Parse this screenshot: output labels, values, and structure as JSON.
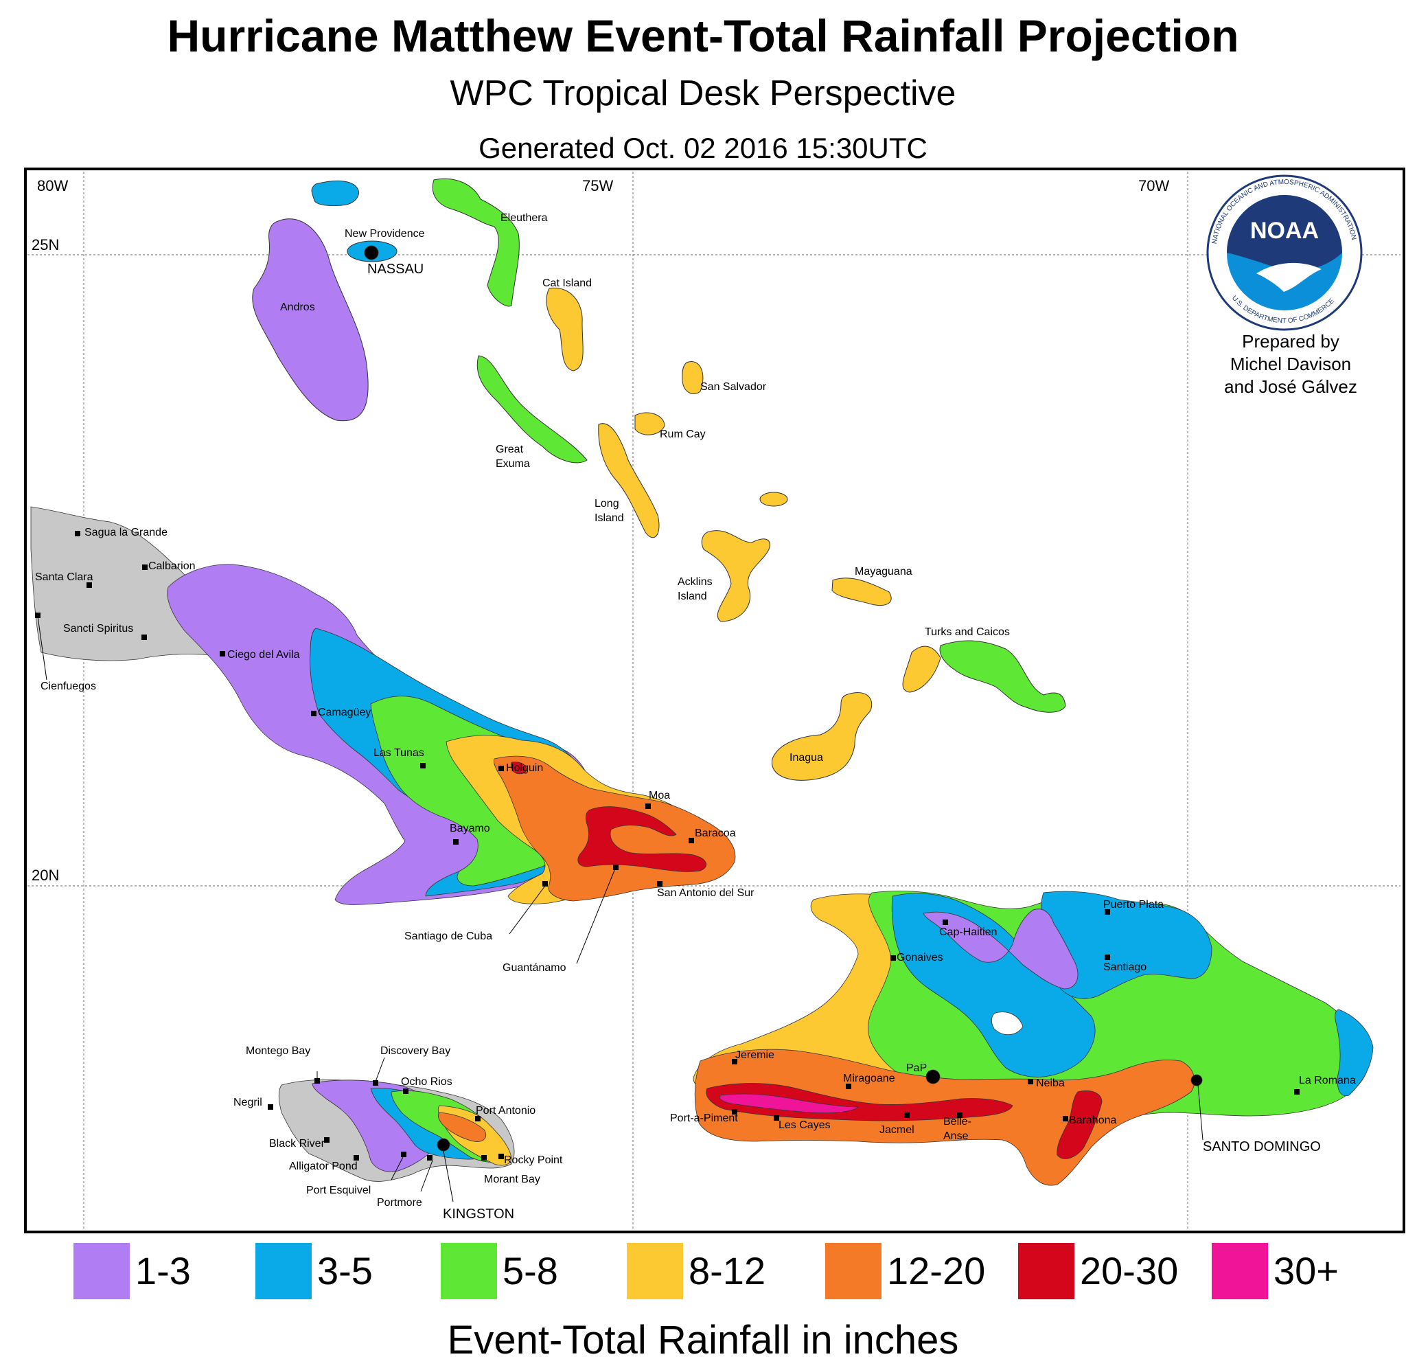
{
  "header": {
    "title": "Hurricane Matthew Event-Total Rainfall Projection",
    "subtitle": "WPC Tropical Desk Perspective",
    "generated": "Generated Oct. 02 2016 15:30UTC"
  },
  "axes": {
    "lon_labels": [
      "80W",
      "75W",
      "70W"
    ],
    "lat_labels": [
      "25N",
      "20N"
    ]
  },
  "logo": {
    "text": "NOAA",
    "ring_text_top": "NATIONAL OCEANIC AND ATMOSPHERIC ADMINISTRATION",
    "ring_text_bottom": "U.S. DEPARTMENT OF COMMERCE"
  },
  "credit": {
    "line1": "Prepared by",
    "line2": "Michel Davison",
    "line3": "and José Gálvez"
  },
  "colors": {
    "c1_3": "#b07ef2",
    "c3_5": "#0aaae8",
    "c5_8": "#5ee835",
    "c8_12": "#fcc933",
    "c12_20": "#f57a28",
    "c20_30": "#d4061c",
    "c30_plus": "#f01598",
    "land_gray": "#c8c8c8"
  },
  "places": {
    "bahamas": {
      "new_providence": "New Providence",
      "nassau": "NASSAU",
      "andros": "Andros",
      "eleuthera": "Eleuthera",
      "cat_island": "Cat Island",
      "san_salvador": "San Salvador",
      "rum_cay": "Rum Cay",
      "great_exuma_1": "Great",
      "great_exuma_2": "Exuma",
      "long_island_1": "Long",
      "long_island_2": "Island",
      "acklins_1": "Acklins",
      "acklins_2": "Island",
      "mayaguana": "Mayaguana",
      "turks_caicos": "Turks and Caicos",
      "inagua": "Inagua"
    },
    "cuba": {
      "sagua": "Sagua la Grande",
      "calbarion": "Calbarion",
      "santa_clara": "Santa Clara",
      "sancti_spiritus": "Sancti Spiritus",
      "cienfuegos": "Cienfuegos",
      "ciego": "Ciego del Avila",
      "camaguey": "Camagüey",
      "las_tunas": "Las Tunas",
      "holguin": "Holguin",
      "moa": "Moa",
      "baracoa": "Baracoa",
      "bayamo": "Bayamo",
      "san_antonio": "San Antonio del Sur",
      "santiago": "Santiago de Cuba",
      "guantanamo": "Guantánamo"
    },
    "jamaica": {
      "montego": "Montego Bay",
      "discovery": "Discovery  Bay",
      "ocho": "Ocho Rios",
      "negril": "Negril",
      "port_antonio": "Port Antonio",
      "black_river": "Black River",
      "alligator": "Alligator Pond",
      "rocky": "Rocky Point",
      "morant": "Morant Bay",
      "esquivel": "Port Esquivel",
      "portmore": "Portmore",
      "kingston": "KINGSTON"
    },
    "hispaniola": {
      "cap_haitien": "Cap-Haitien",
      "puerto_plata": "Puerto Plata",
      "gonaives": "Gonaives",
      "santiago": "Santiago",
      "jeremie": "Jeremie",
      "miragoane": "Miragoane",
      "pap": "PaP",
      "neiba": "Neiba",
      "la_romana": "La Romana",
      "port_a_piment": "Port-a-Piment",
      "les_cayes": "Les Cayes",
      "jacmel": "Jacmel",
      "belle_anse_1": "Belle-",
      "belle_anse_2": "Anse",
      "barahona": "Barahona",
      "santo_domingo": "SANTO DOMINGO"
    }
  },
  "legend": {
    "title": "Event-Total Rainfall in inches",
    "items": [
      {
        "label": "1-3",
        "color": "#b07ef2"
      },
      {
        "label": "3-5",
        "color": "#0aaae8"
      },
      {
        "label": "5-8",
        "color": "#5ee835"
      },
      {
        "label": "8-12",
        "color": "#fcc933"
      },
      {
        "label": "12-20",
        "color": "#f57a28"
      },
      {
        "label": "20-30",
        "color": "#d4061c"
      },
      {
        "label": "30+",
        "color": "#f01598"
      }
    ]
  }
}
